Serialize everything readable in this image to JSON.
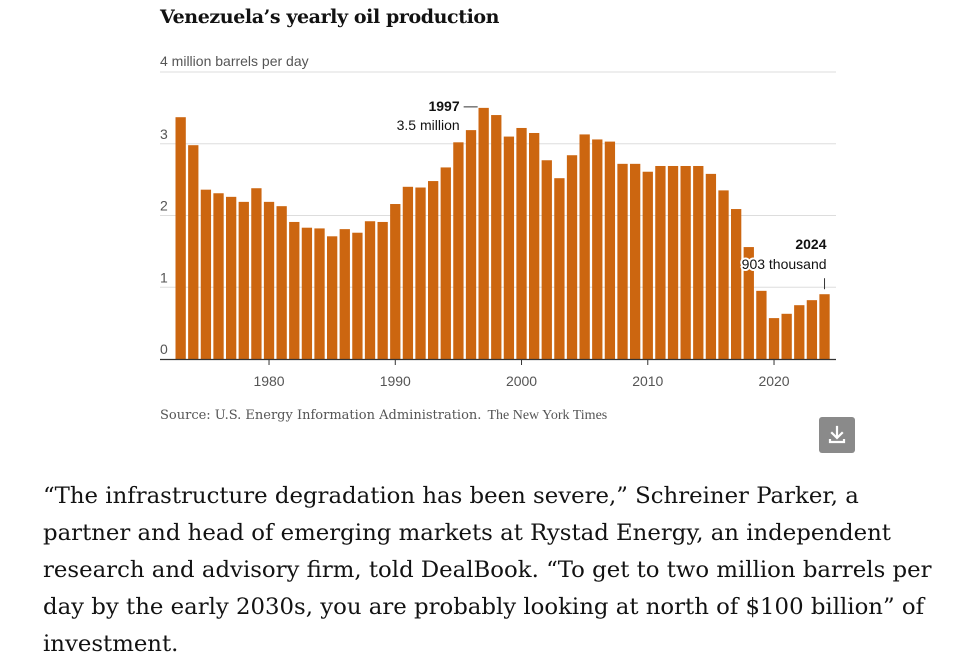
{
  "chart_data": {
    "type": "bar",
    "title": "Venezuela’s yearly oil production",
    "ylabel": "4 million barrels per day",
    "xlabel": "",
    "ylim": [
      0,
      4
    ],
    "yticks": [
      0,
      1,
      2,
      3
    ],
    "xticks": [
      1980,
      1990,
      2000,
      2010,
      2020
    ],
    "bar_color": "#cc6610",
    "x": [
      1973,
      1974,
      1975,
      1976,
      1977,
      1978,
      1979,
      1980,
      1981,
      1982,
      1983,
      1984,
      1985,
      1986,
      1987,
      1988,
      1989,
      1990,
      1991,
      1992,
      1993,
      1994,
      1995,
      1996,
      1997,
      1998,
      1999,
      2000,
      2001,
      2002,
      2003,
      2004,
      2005,
      2006,
      2007,
      2008,
      2009,
      2010,
      2011,
      2012,
      2013,
      2014,
      2015,
      2016,
      2017,
      2018,
      2019,
      2020,
      2021,
      2022,
      2023,
      2024
    ],
    "values": [
      3.37,
      2.98,
      2.36,
      2.31,
      2.26,
      2.19,
      2.38,
      2.19,
      2.13,
      1.91,
      1.83,
      1.82,
      1.71,
      1.81,
      1.76,
      1.92,
      1.91,
      2.16,
      2.4,
      2.39,
      2.48,
      2.67,
      3.02,
      3.19,
      3.5,
      3.4,
      3.1,
      3.22,
      3.15,
      2.77,
      2.52,
      2.84,
      3.13,
      3.06,
      3.03,
      2.72,
      2.72,
      2.61,
      2.69,
      2.69,
      2.69,
      2.69,
      2.58,
      2.35,
      2.09,
      1.56,
      0.95,
      0.57,
      0.63,
      0.75,
      0.82,
      0.903
    ],
    "annotations": [
      {
        "year": "1997",
        "label": "3.5 million",
        "x": 1997,
        "value": 3.5
      },
      {
        "year": "2024",
        "label": "903 thousand",
        "x": 2024,
        "value": 0.903
      }
    ],
    "source": "Source: U.S. Energy Information Administration.",
    "credit": "The New York Times"
  },
  "article": {
    "paragraph": "“The infrastructure degradation has been severe,” Schreiner Parker, a partner and head of emerging markets at Rystad Energy, an independent research and advisory firm, told DealBook. “To get to two million barrels per day by the early 2030s, you are probably looking at north of $100 billion” of investment."
  },
  "icons": {
    "download": "download-icon"
  }
}
